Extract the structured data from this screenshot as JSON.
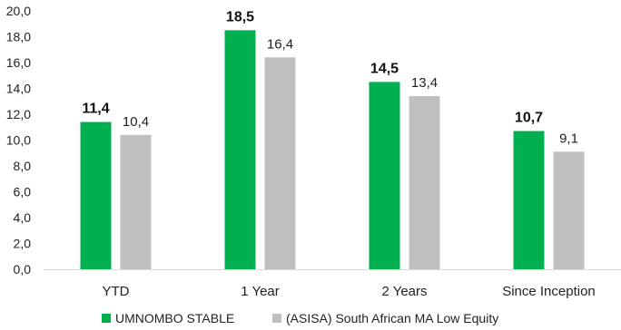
{
  "chart_data": {
    "type": "bar",
    "categories": [
      "YTD",
      "1 Year",
      "2 Years",
      "Since Inception"
    ],
    "series": [
      {
        "name": "UMNOMBO STABLE",
        "values": [
          11.4,
          18.5,
          14.5,
          10.7
        ],
        "color": "#00b050"
      },
      {
        "name": "(ASISA) South African MA Low Equity",
        "values": [
          10.4,
          16.4,
          13.4,
          9.1
        ],
        "color": "#bfbfbf"
      }
    ],
    "data_labels": [
      [
        "11,4",
        "18,5",
        "14,5",
        "10,7"
      ],
      [
        "10,4",
        "16,4",
        "13,4",
        "9,1"
      ]
    ],
    "y_ticks": [
      "0,0",
      "2,0",
      "4,0",
      "6,0",
      "8,0",
      "10,0",
      "12,0",
      "14,0",
      "16,0",
      "18,0",
      "20,0"
    ],
    "ylim": [
      0,
      20
    ],
    "title": "",
    "xlabel": "",
    "ylabel": "",
    "grid": false,
    "legend_position": "bottom"
  }
}
